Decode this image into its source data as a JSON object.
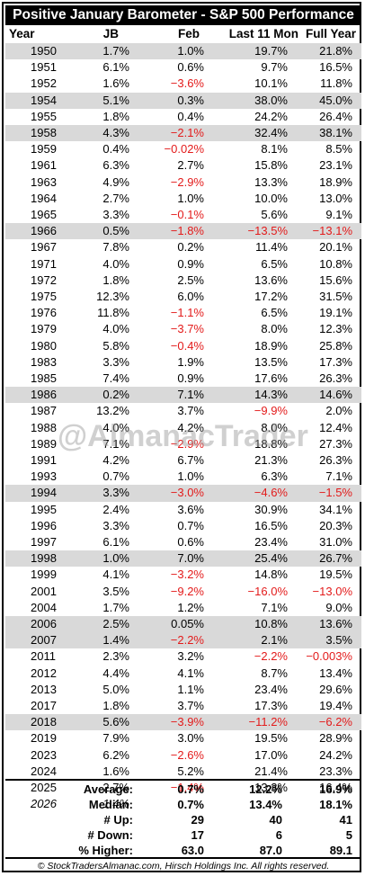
{
  "title": "Positive January Barometer - S&P 500 Performance",
  "columns": {
    "year": "Year",
    "jb": "JB",
    "feb": "Feb",
    "l11": "Last 11 Mon",
    "fy": "Full Year"
  },
  "rows": [
    {
      "year": "1950",
      "jb": "1.7%",
      "feb": "1.0%",
      "l11": "19.7%",
      "fy": "21.8%",
      "shade": true
    },
    {
      "year": "1951",
      "jb": "6.1%",
      "feb": "0.6%",
      "l11": "9.7%",
      "fy": "16.5%",
      "shade": false
    },
    {
      "year": "1952",
      "jb": "1.6%",
      "feb": "−3.6%",
      "l11": "10.1%",
      "fy": "11.8%",
      "shade": false
    },
    {
      "year": "1954",
      "jb": "5.1%",
      "feb": "0.3%",
      "l11": "38.0%",
      "fy": "45.0%",
      "shade": true
    },
    {
      "year": "1955",
      "jb": "1.8%",
      "feb": "0.4%",
      "l11": "24.2%",
      "fy": "26.4%",
      "shade": false
    },
    {
      "year": "1958",
      "jb": "4.3%",
      "feb": "−2.1%",
      "l11": "32.4%",
      "fy": "38.1%",
      "shade": true
    },
    {
      "year": "1959",
      "jb": "0.4%",
      "feb": "−0.02%",
      "l11": "8.1%",
      "fy": "8.5%",
      "shade": false
    },
    {
      "year": "1961",
      "jb": "6.3%",
      "feb": "2.7%",
      "l11": "15.8%",
      "fy": "23.1%",
      "shade": false
    },
    {
      "year": "1963",
      "jb": "4.9%",
      "feb": "−2.9%",
      "l11": "13.3%",
      "fy": "18.9%",
      "shade": false
    },
    {
      "year": "1964",
      "jb": "2.7%",
      "feb": "1.0%",
      "l11": "10.0%",
      "fy": "13.0%",
      "shade": false
    },
    {
      "year": "1965",
      "jb": "3.3%",
      "feb": "−0.1%",
      "l11": "5.6%",
      "fy": "9.1%",
      "shade": false
    },
    {
      "year": "1966",
      "jb": "0.5%",
      "feb": "−1.8%",
      "l11": "−13.5%",
      "fy": "−13.1%",
      "shade": true
    },
    {
      "year": "1967",
      "jb": "7.8%",
      "feb": "0.2%",
      "l11": "11.4%",
      "fy": "20.1%",
      "shade": false
    },
    {
      "year": "1971",
      "jb": "4.0%",
      "feb": "0.9%",
      "l11": "6.5%",
      "fy": "10.8%",
      "shade": false
    },
    {
      "year": "1972",
      "jb": "1.8%",
      "feb": "2.5%",
      "l11": "13.6%",
      "fy": "15.6%",
      "shade": false
    },
    {
      "year": "1975",
      "jb": "12.3%",
      "feb": "6.0%",
      "l11": "17.2%",
      "fy": "31.5%",
      "shade": false
    },
    {
      "year": "1976",
      "jb": "11.8%",
      "feb": "−1.1%",
      "l11": "6.5%",
      "fy": "19.1%",
      "shade": false
    },
    {
      "year": "1979",
      "jb": "4.0%",
      "feb": "−3.7%",
      "l11": "8.0%",
      "fy": "12.3%",
      "shade": false
    },
    {
      "year": "1980",
      "jb": "5.8%",
      "feb": "−0.4%",
      "l11": "18.9%",
      "fy": "25.8%",
      "shade": false
    },
    {
      "year": "1983",
      "jb": "3.3%",
      "feb": "1.9%",
      "l11": "13.5%",
      "fy": "17.3%",
      "shade": false
    },
    {
      "year": "1985",
      "jb": "7.4%",
      "feb": "0.9%",
      "l11": "17.6%",
      "fy": "26.3%",
      "shade": false
    },
    {
      "year": "1986",
      "jb": "0.2%",
      "feb": "7.1%",
      "l11": "14.3%",
      "fy": "14.6%",
      "shade": true
    },
    {
      "year": "1987",
      "jb": "13.2%",
      "feb": "3.7%",
      "l11": "−9.9%",
      "fy": "2.0%",
      "shade": false
    },
    {
      "year": "1988",
      "jb": "4.0%",
      "feb": "4.2%",
      "l11": "8.0%",
      "fy": "12.4%",
      "shade": false
    },
    {
      "year": "1989",
      "jb": "7.1%",
      "feb": "−2.9%",
      "l11": "18.8%",
      "fy": "27.3%",
      "shade": false
    },
    {
      "year": "1991",
      "jb": "4.2%",
      "feb": "6.7%",
      "l11": "21.3%",
      "fy": "26.3%",
      "shade": false
    },
    {
      "year": "1993",
      "jb": "0.7%",
      "feb": "1.0%",
      "l11": "6.3%",
      "fy": "7.1%",
      "shade": false
    },
    {
      "year": "1994",
      "jb": "3.3%",
      "feb": "−3.0%",
      "l11": "−4.6%",
      "fy": "−1.5%",
      "shade": true
    },
    {
      "year": "1995",
      "jb": "2.4%",
      "feb": "3.6%",
      "l11": "30.9%",
      "fy": "34.1%",
      "shade": false
    },
    {
      "year": "1996",
      "jb": "3.3%",
      "feb": "0.7%",
      "l11": "16.5%",
      "fy": "20.3%",
      "shade": false
    },
    {
      "year": "1997",
      "jb": "6.1%",
      "feb": "0.6%",
      "l11": "23.4%",
      "fy": "31.0%",
      "shade": false
    },
    {
      "year": "1998",
      "jb": "1.0%",
      "feb": "7.0%",
      "l11": "25.4%",
      "fy": "26.7%",
      "shade": true
    },
    {
      "year": "1999",
      "jb": "4.1%",
      "feb": "−3.2%",
      "l11": "14.8%",
      "fy": "19.5%",
      "shade": false
    },
    {
      "year": "2001",
      "jb": "3.5%",
      "feb": "−9.2%",
      "l11": "−16.0%",
      "fy": "−13.0%",
      "shade": false
    },
    {
      "year": "2004",
      "jb": "1.7%",
      "feb": "1.2%",
      "l11": "7.1%",
      "fy": "9.0%",
      "shade": false
    },
    {
      "year": "2006",
      "jb": "2.5%",
      "feb": "0.05%",
      "l11": "10.8%",
      "fy": "13.6%",
      "shade": true
    },
    {
      "year": "2007",
      "jb": "1.4%",
      "feb": "−2.2%",
      "l11": "2.1%",
      "fy": "3.5%",
      "shade": true
    },
    {
      "year": "2011",
      "jb": "2.3%",
      "feb": "3.2%",
      "l11": "−2.2%",
      "fy": "−0.003%",
      "shade": false
    },
    {
      "year": "2012",
      "jb": "4.4%",
      "feb": "4.1%",
      "l11": "8.7%",
      "fy": "13.4%",
      "shade": false
    },
    {
      "year": "2013",
      "jb": "5.0%",
      "feb": "1.1%",
      "l11": "23.4%",
      "fy": "29.6%",
      "shade": false
    },
    {
      "year": "2017",
      "jb": "1.8%",
      "feb": "3.7%",
      "l11": "17.3%",
      "fy": "19.4%",
      "shade": false
    },
    {
      "year": "2018",
      "jb": "5.6%",
      "feb": "−3.9%",
      "l11": "−11.2%",
      "fy": "−6.2%",
      "shade": true
    },
    {
      "year": "2019",
      "jb": "7.9%",
      "feb": "3.0%",
      "l11": "19.5%",
      "fy": "28.9%",
      "shade": false
    },
    {
      "year": "2023",
      "jb": "6.2%",
      "feb": "−2.6%",
      "l11": "17.0%",
      "fy": "24.2%",
      "shade": false
    },
    {
      "year": "2024",
      "jb": "1.6%",
      "feb": "5.2%",
      "l11": "21.4%",
      "fy": "23.3%",
      "shade": false
    },
    {
      "year": "2025",
      "jb": "2.7%",
      "feb": "−1.4%",
      "l11": "13.3%",
      "fy": "16.4%",
      "shade": false
    },
    {
      "year": "2026",
      "jb": "1.4%",
      "feb": "",
      "l11": "",
      "fy": "",
      "shade": false,
      "italic": true
    }
  ],
  "summary": [
    {
      "label": "Average:",
      "feb": "0.7%",
      "l11": "12.2%",
      "fy": "16.9%"
    },
    {
      "label": "Median:",
      "feb": "0.7%",
      "l11": "13.4%",
      "fy": "18.1%"
    },
    {
      "label": "# Up:",
      "feb": "29",
      "l11": "40",
      "fy": "41"
    },
    {
      "label": "# Down:",
      "feb": "17",
      "l11": "6",
      "fy": "5"
    },
    {
      "label": "% Higher:",
      "feb": "63.0",
      "l11": "87.0",
      "fy": "89.1"
    }
  ],
  "watermark": "@AlmanacTrader",
  "footer": "© StockTradersAlmanac.com, Hirsch Holdings Inc. All rights reserved.",
  "colors": {
    "negative": "#e31b1b",
    "shade": "#d9d9d9",
    "title_bg": "#000000"
  }
}
